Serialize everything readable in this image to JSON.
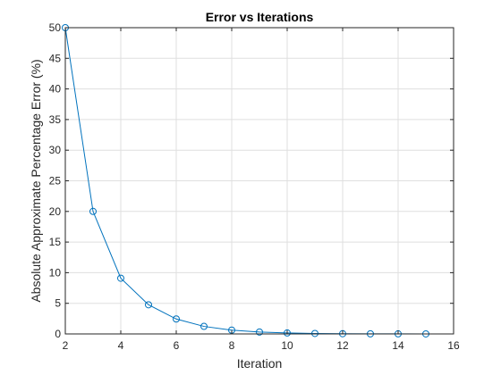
{
  "chart_data": {
    "type": "line",
    "title": "Error vs Iterations",
    "xlabel": "Iteration",
    "ylabel": "Absolute Approximate Percentage Error (%)",
    "xlim": [
      2,
      16
    ],
    "ylim": [
      0,
      50
    ],
    "xticks": [
      2,
      4,
      6,
      8,
      10,
      12,
      14,
      16
    ],
    "yticks": [
      0,
      5,
      10,
      15,
      20,
      25,
      30,
      35,
      40,
      45,
      50
    ],
    "grid": true,
    "marker": "circle",
    "line_color": "#0072bd",
    "series": [
      {
        "x": [
          2,
          3,
          4,
          5,
          6,
          7,
          8,
          9,
          10,
          11,
          12,
          13,
          14,
          15
        ],
        "values": [
          50,
          20,
          9.1,
          4.76,
          2.44,
          1.23,
          0.62,
          0.31,
          0.16,
          0.08,
          0.04,
          0.02,
          0.01,
          0.005
        ]
      }
    ]
  }
}
